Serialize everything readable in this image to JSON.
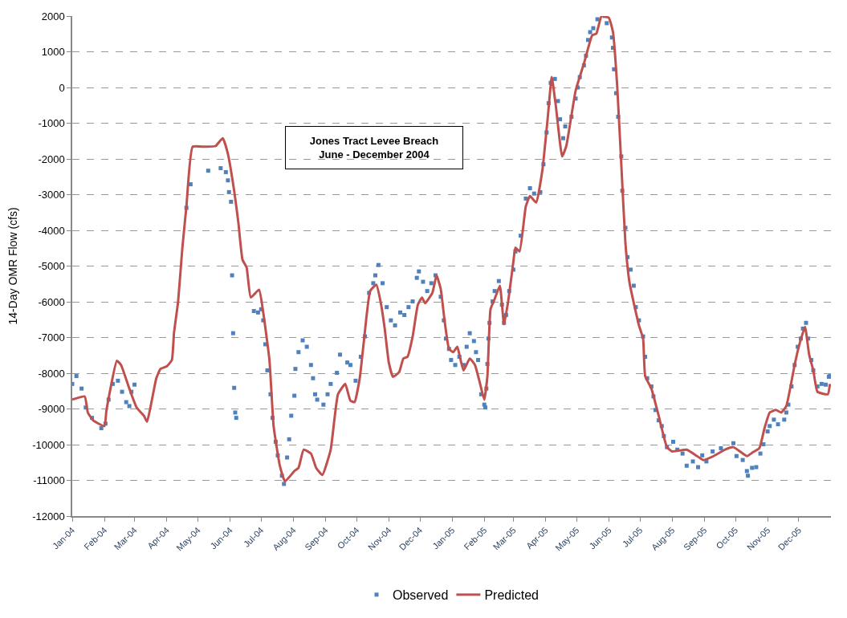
{
  "chart_data": {
    "type": "line",
    "ylabel": "14-Day OMR Flow (cfs)",
    "annotations": [
      "Jones Tract Levee Breach\nJune - December 2004"
    ],
    "xlim": [
      "2004-01-01",
      "2006-01-01"
    ],
    "xticks": [
      {
        "value": "2004-01-01",
        "label": "Jan-04"
      },
      {
        "value": "2004-02-01",
        "label": "Feb-04"
      },
      {
        "value": "2004-03-01",
        "label": "Mar-04"
      },
      {
        "value": "2004-04-01",
        "label": "Apr-04"
      },
      {
        "value": "2004-05-01",
        "label": "May-04"
      },
      {
        "value": "2004-06-01",
        "label": "Jun-04"
      },
      {
        "value": "2004-07-01",
        "label": "Jul-04"
      },
      {
        "value": "2004-08-01",
        "label": "Aug-04"
      },
      {
        "value": "2004-09-01",
        "label": "Sep-04"
      },
      {
        "value": "2004-10-01",
        "label": "Oct-04"
      },
      {
        "value": "2004-11-01",
        "label": "Nov-04"
      },
      {
        "value": "2004-12-01",
        "label": "Dec-04"
      },
      {
        "value": "2005-01-01",
        "label": "Jan-05"
      },
      {
        "value": "2005-02-01",
        "label": "Feb-05"
      },
      {
        "value": "2005-03-01",
        "label": "Mar-05"
      },
      {
        "value": "2005-04-01",
        "label": "Apr-05"
      },
      {
        "value": "2005-05-01",
        "label": "May-05"
      },
      {
        "value": "2005-06-01",
        "label": "Jun-05"
      },
      {
        "value": "2005-07-01",
        "label": "Jul-05"
      },
      {
        "value": "2005-08-01",
        "label": "Aug-05"
      },
      {
        "value": "2005-09-01",
        "label": "Sep-05"
      },
      {
        "value": "2005-10-01",
        "label": "Oct-05"
      },
      {
        "value": "2005-11-01",
        "label": "Nov-05"
      },
      {
        "value": "2005-12-01",
        "label": "Dec-05"
      }
    ],
    "ylim": [
      -12000,
      2000
    ],
    "yticks": [
      -12000,
      -11000,
      -10000,
      -9000,
      -8000,
      -7000,
      -6000,
      -5000,
      -4000,
      -3000,
      -2000,
      -1000,
      0,
      1000,
      2000
    ],
    "grid": "y",
    "legend": "bottom",
    "series": [
      {
        "name": "Observed",
        "type": "scatter",
        "marker": "square",
        "color": "#4f81bd",
        "x": [
          "2004-01-01",
          "2004-01-05",
          "2004-01-10",
          "2004-01-14",
          "2004-01-20",
          "2004-01-29",
          "2004-02-02",
          "2004-02-05",
          "2004-02-09",
          "2004-02-14",
          "2004-02-18",
          "2004-02-22",
          "2004-02-25",
          "2004-02-27",
          "2004-03-01",
          "2004-04-20",
          "2004-04-24",
          "2004-05-11",
          "2004-05-23",
          "2004-05-28",
          "2004-05-30",
          "2004-05-31",
          "2004-06-02",
          "2004-06-03",
          "2004-06-04",
          "2004-06-05",
          "2004-06-06",
          "2004-06-07",
          "2004-06-24",
          "2004-06-28",
          "2004-07-01",
          "2004-07-03",
          "2004-07-05",
          "2004-07-07",
          "2004-07-10",
          "2004-07-12",
          "2004-07-15",
          "2004-07-17",
          "2004-07-21",
          "2004-07-23",
          "2004-07-26",
          "2004-07-28",
          "2004-07-30",
          "2004-08-02",
          "2004-08-03",
          "2004-08-06",
          "2004-08-10",
          "2004-08-14",
          "2004-08-18",
          "2004-08-20",
          "2004-08-22",
          "2004-08-24",
          "2004-08-30",
          "2004-09-03",
          "2004-09-06",
          "2004-09-12",
          "2004-09-15",
          "2004-09-22",
          "2004-09-25",
          "2004-09-30",
          "2004-10-05",
          "2004-10-09",
          "2004-10-13",
          "2004-10-17",
          "2004-10-19",
          "2004-10-22",
          "2004-10-26",
          "2004-10-30",
          "2004-11-03",
          "2004-11-07",
          "2004-11-12",
          "2004-11-16",
          "2004-11-20",
          "2004-11-24",
          "2004-11-28",
          "2004-11-30",
          "2004-12-04",
          "2004-12-08",
          "2004-12-12",
          "2004-12-16",
          "2004-12-21",
          "2004-12-24",
          "2004-12-26",
          "2004-12-29",
          "2004-12-31",
          "2005-01-04",
          "2005-01-08",
          "2005-01-12",
          "2005-01-15",
          "2005-01-18",
          "2005-01-22",
          "2005-01-24",
          "2005-01-26",
          "2005-01-29",
          "2005-02-01",
          "2005-02-02",
          "2005-02-03",
          "2005-02-04",
          "2005-02-05",
          "2005-02-06",
          "2005-02-09",
          "2005-02-11",
          "2005-02-15",
          "2005-02-18",
          "2005-02-20",
          "2005-02-22",
          "2005-02-25",
          "2005-03-01",
          "2005-03-03",
          "2005-03-08",
          "2005-03-13",
          "2005-03-17",
          "2005-03-21",
          "2005-03-27",
          "2005-03-30",
          "2005-04-02",
          "2005-04-04",
          "2005-04-06",
          "2005-04-10",
          "2005-04-13",
          "2005-04-15",
          "2005-04-18",
          "2005-04-20",
          "2005-04-26",
          "2005-04-30",
          "2005-05-02",
          "2005-05-04",
          "2005-05-08",
          "2005-05-10",
          "2005-05-12",
          "2005-05-14",
          "2005-05-17",
          "2005-05-21",
          "2005-05-28",
          "2005-05-30",
          "2005-06-04",
          "2005-06-05",
          "2005-06-06",
          "2005-06-08",
          "2005-06-10",
          "2005-06-13",
          "2005-06-14",
          "2005-06-17",
          "2005-06-19",
          "2005-06-22",
          "2005-06-25",
          "2005-06-27",
          "2005-06-30",
          "2005-07-04",
          "2005-07-06",
          "2005-07-08",
          "2005-07-12",
          "2005-07-14",
          "2005-07-16",
          "2005-07-19",
          "2005-07-22",
          "2005-07-24",
          "2005-07-27",
          "2005-08-02",
          "2005-08-06",
          "2005-08-11",
          "2005-08-15",
          "2005-08-21",
          "2005-08-26",
          "2005-08-30",
          "2005-09-03",
          "2005-09-09",
          "2005-09-17",
          "2005-09-29",
          "2005-10-02",
          "2005-10-08",
          "2005-10-12",
          "2005-10-13",
          "2005-10-17",
          "2005-10-21",
          "2005-10-25",
          "2005-10-28",
          "2005-11-01",
          "2005-11-03",
          "2005-11-07",
          "2005-11-11",
          "2005-11-17",
          "2005-11-19",
          "2005-11-21",
          "2005-11-24",
          "2005-11-27",
          "2005-11-30",
          "2005-12-03",
          "2005-12-05",
          "2005-12-08",
          "2005-12-10",
          "2005-12-13",
          "2005-12-15",
          "2005-12-19",
          "2005-12-23",
          "2005-12-27",
          "2005-12-30",
          "2005-12-31"
        ],
        "values": [
          -8300,
          -8080,
          -8430,
          -8960,
          -9250,
          -9540,
          -9410,
          -8740,
          -8300,
          -8210,
          -8520,
          -8810,
          -8920,
          -8520,
          -8320,
          -3370,
          -2710,
          -2330,
          -2260,
          -2370,
          -2600,
          -2930,
          -3200,
          -5260,
          -6880,
          -8410,
          -9100,
          -9250,
          -6260,
          -6300,
          -6210,
          -6520,
          -7190,
          -7920,
          -8590,
          -9250,
          -9920,
          -10300,
          -10870,
          -11100,
          -10360,
          -9850,
          -9190,
          -8630,
          -7880,
          -7410,
          -7080,
          -7260,
          -7770,
          -8140,
          -8590,
          -8740,
          -8880,
          -8590,
          -8300,
          -7990,
          -7480,
          -7700,
          -7770,
          -8210,
          -7540,
          -6970,
          -5750,
          -5480,
          -5260,
          -4970,
          -5480,
          -6150,
          -6520,
          -6660,
          -6300,
          -6370,
          -6150,
          -5990,
          -5330,
          -5150,
          -5440,
          -5700,
          -5480,
          -5260,
          -5860,
          -6520,
          -7030,
          -7320,
          -7630,
          -7770,
          -7540,
          -7770,
          -7260,
          -6880,
          -7100,
          -7410,
          -7630,
          -8590,
          -8880,
          -8960,
          -8430,
          -7740,
          -7030,
          -6590,
          -5990,
          -5700,
          -5420,
          -6080,
          -6590,
          -6370,
          -5700,
          -5100,
          -4590,
          -4150,
          -3110,
          -2820,
          -2970,
          -2930,
          -2150,
          -1260,
          -440,
          130,
          240,
          -380,
          -890,
          -1420,
          -1090,
          -820,
          -310,
          0,
          290,
          620,
          890,
          1330,
          1550,
          1660,
          1910,
          2000,
          1800,
          1400,
          1110,
          510,
          -160,
          -820,
          -1930,
          -2890,
          -3930,
          -4750,
          -5100,
          -5550,
          -6150,
          -6520,
          -6970,
          -7540,
          -8140,
          -8370,
          -8650,
          -9030,
          -9320,
          -9480,
          -9760,
          -10070,
          -9920,
          -10140,
          -10250,
          -10590,
          -10470,
          -10630,
          -10300,
          -10470,
          -10190,
          -10100,
          -9960,
          -10320,
          -10430,
          -10740,
          -10870,
          -10650,
          -10630,
          -10250,
          -9990,
          -9630,
          -9480,
          -9300,
          -9430,
          -9300,
          -9100,
          -8880,
          -8370,
          -7770,
          -7260,
          -7030,
          -6750,
          -6590,
          -7030,
          -7630,
          -7920,
          -8370,
          -8300,
          -8320,
          -8100,
          -8080
        ]
      },
      {
        "name": "Predicted",
        "type": "line",
        "line_style": "solid",
        "color": "#c0504d",
        "x": [
          "2004-01-01",
          "2004-01-13",
          "2004-01-16",
          "2004-01-21",
          "2004-02-01",
          "2004-02-03",
          "2004-02-13",
          "2004-02-17",
          "2004-02-25",
          "2004-03-03",
          "2004-03-10",
          "2004-03-13",
          "2004-03-22",
          "2004-03-26",
          "2004-04-01",
          "2004-04-06",
          "2004-04-08",
          "2004-04-12",
          "2004-04-16",
          "2004-04-20",
          "2004-04-26",
          "2004-05-08",
          "2004-05-18",
          "2004-05-25",
          "2004-05-30",
          "2004-06-05",
          "2004-06-09",
          "2004-06-13",
          "2004-06-17",
          "2004-06-21",
          "2004-06-29",
          "2004-07-03",
          "2004-07-09",
          "2004-07-13",
          "2004-07-19",
          "2004-07-24",
          "2004-08-02",
          "2004-08-06",
          "2004-08-11",
          "2004-08-18",
          "2004-08-23",
          "2004-08-29",
          "2004-09-06",
          "2004-09-13",
          "2004-09-20",
          "2004-09-25",
          "2004-09-29",
          "2004-10-04",
          "2004-10-08",
          "2004-10-14",
          "2004-10-20",
          "2004-10-24",
          "2004-10-28",
          "2004-11-01",
          "2004-11-05",
          "2004-11-11",
          "2004-11-15",
          "2004-11-19",
          "2004-11-24",
          "2004-11-29",
          "2004-12-03",
          "2004-12-06",
          "2004-12-13",
          "2004-12-17",
          "2004-12-21",
          "2004-12-25",
          "2004-12-29",
          "2005-01-02",
          "2005-01-06",
          "2005-01-08",
          "2005-01-12",
          "2005-01-18",
          "2005-01-23",
          "2005-01-28",
          "2005-02-01",
          "2005-02-04",
          "2005-02-07",
          "2005-02-11",
          "2005-02-16",
          "2005-02-20",
          "2005-02-24",
          "2005-03-01",
          "2005-03-03",
          "2005-03-07",
          "2005-03-13",
          "2005-03-17",
          "2005-03-23",
          "2005-03-29",
          "2005-04-03",
          "2005-04-07",
          "2005-04-11",
          "2005-04-17",
          "2005-04-21",
          "2005-04-30",
          "2005-05-08",
          "2005-05-16",
          "2005-05-20",
          "2005-05-25",
          "2005-06-01",
          "2005-06-05",
          "2005-06-09",
          "2005-06-13",
          "2005-06-17",
          "2005-06-21",
          "2005-06-30",
          "2005-07-04",
          "2005-07-06",
          "2005-07-12",
          "2005-07-19",
          "2005-07-27",
          "2005-08-01",
          "2005-08-15",
          "2005-08-25",
          "2005-08-31",
          "2005-09-10",
          "2005-09-21",
          "2005-09-29",
          "2005-10-12",
          "2005-10-18",
          "2005-10-24",
          "2005-10-29",
          "2005-11-03",
          "2005-11-09",
          "2005-11-14",
          "2005-11-19",
          "2005-11-27",
          "2005-12-01",
          "2005-12-07",
          "2005-12-11",
          "2005-12-15",
          "2005-12-19",
          "2005-12-29",
          "2005-12-31"
        ],
        "values": [
          -8740,
          -8650,
          -9100,
          -9320,
          -9480,
          -9030,
          -7650,
          -7770,
          -8430,
          -8960,
          -9190,
          -9360,
          -8140,
          -7880,
          -7810,
          -7630,
          -6880,
          -5990,
          -4520,
          -3330,
          -1660,
          -1660,
          -1640,
          -1420,
          -1860,
          -2890,
          -3770,
          -4820,
          -5040,
          -5880,
          -5660,
          -6300,
          -7630,
          -9480,
          -10590,
          -11030,
          -10740,
          -10650,
          -10140,
          -10250,
          -10650,
          -10850,
          -10140,
          -8590,
          -8300,
          -8770,
          -8810,
          -8140,
          -7100,
          -5700,
          -5520,
          -5990,
          -6740,
          -7700,
          -8100,
          -7970,
          -7590,
          -7540,
          -6970,
          -6080,
          -5880,
          -6040,
          -5750,
          -5260,
          -5640,
          -6590,
          -7320,
          -7410,
          -7260,
          -7480,
          -7920,
          -7590,
          -7770,
          -8300,
          -8740,
          -8080,
          -6210,
          -5920,
          -5550,
          -6630,
          -5990,
          -4880,
          -4480,
          -4590,
          -3330,
          -3040,
          -3220,
          -2310,
          -890,
          290,
          -530,
          -1930,
          -1640,
          -90,
          670,
          1460,
          1510,
          2000,
          1950,
          1550,
          70,
          -2150,
          -4370,
          -5480,
          -6660,
          -7030,
          -8080,
          -8430,
          -9190,
          -10070,
          -10190,
          -10140,
          -10320,
          -10430,
          -10320,
          -10140,
          -10070,
          -10320,
          -10210,
          -10100,
          -9540,
          -9100,
          -9030,
          -9100,
          -8920,
          -7770,
          -7260,
          -6700,
          -7480,
          -7920,
          -8520,
          -8590,
          -8300
        ]
      }
    ]
  }
}
